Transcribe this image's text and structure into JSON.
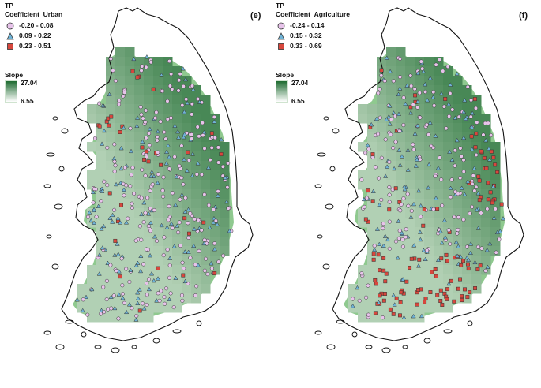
{
  "colors": {
    "class1": "#e7c3ea",
    "class2": "#6fb3d6",
    "class3": "#d8473d",
    "slope_high": "#1e6b30",
    "slope_low": "#ffffff"
  },
  "panels": [
    {
      "label": "(e)",
      "legend": {
        "title": "TP",
        "subtitle": "Coefficient_Urban",
        "classes": [
          {
            "range": "-0.20 - 0.08",
            "symbol": "circle-icon"
          },
          {
            "range": "0.09 - 0.22",
            "symbol": "triangle-icon"
          },
          {
            "range": "0.23 - 0.51",
            "symbol": "square-icon"
          }
        ]
      },
      "slope": {
        "title": "Slope",
        "max": "27.04",
        "min": "6.55"
      }
    },
    {
      "label": "(f)",
      "legend": {
        "title": "TP",
        "subtitle": "Coefficient_Agriculture",
        "classes": [
          {
            "range": "-0.24 - 0.14",
            "symbol": "circle-icon"
          },
          {
            "range": "0.15 - 0.32",
            "symbol": "triangle-icon"
          },
          {
            "range": "0.33 - 0.69",
            "symbol": "square-icon"
          }
        ]
      },
      "slope": {
        "title": "Slope",
        "max": "27.04",
        "min": "6.55"
      }
    }
  ]
}
